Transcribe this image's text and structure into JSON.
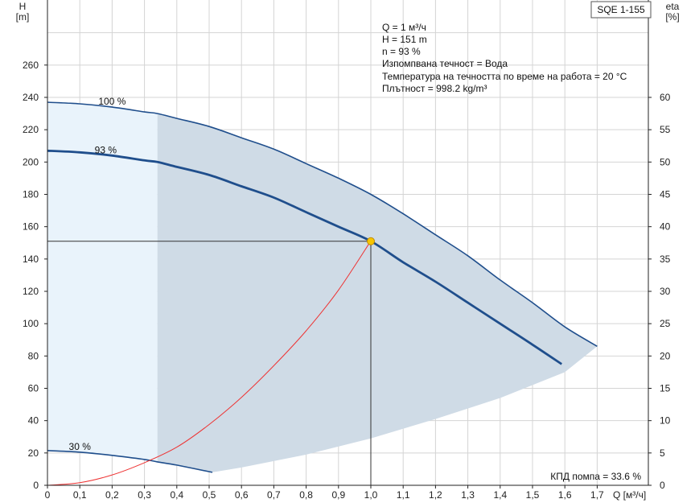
{
  "pump_name": "SQE 1-155",
  "info_lines": [
    "Q = 1 м³/ч",
    "H = 151 m",
    "n = 93 %",
    "Изпомпвана течност = Вода",
    "Температура на течността по време на работа = 20 °C",
    "Плътност = 998.2 kg/m³"
  ],
  "efficiency_note": "КПД помпа = 33.6 %",
  "chart_data": {
    "type": "line",
    "x_axis": {
      "label": "Q [м³/ч]",
      "range": [
        0,
        1.75
      ],
      "ticks": [
        "0",
        "0,1",
        "0,2",
        "0,3",
        "0,4",
        "0,5",
        "0,6",
        "0,7",
        "0,8",
        "0,9",
        "1,0",
        "1,1",
        "1,2",
        "1,3",
        "1,4",
        "1,5",
        "1,6",
        "1,7"
      ]
    },
    "y_left": {
      "label_top": "H",
      "label_unit": "[m]",
      "range": [
        0,
        280
      ],
      "ticks": [
        "0",
        "20",
        "40",
        "60",
        "80",
        "100",
        "120",
        "140",
        "160",
        "180",
        "200",
        "220",
        "240",
        "260"
      ]
    },
    "y_right": {
      "label_top": "eta",
      "label_unit": "[%]",
      "range": [
        0,
        70
      ],
      "ticks": [
        "0",
        "5",
        "10",
        "15",
        "20",
        "25",
        "30",
        "35",
        "40",
        "45",
        "50",
        "55",
        "60"
      ]
    },
    "grid": true,
    "series": [
      {
        "name": "100 %",
        "color": "#1f4e8c",
        "x": [
          0,
          0.1,
          0.2,
          0.3,
          0.34,
          0.4,
          0.5,
          0.6,
          0.7,
          0.8,
          0.9,
          1.0,
          1.1,
          1.2,
          1.3,
          1.4,
          1.5,
          1.6,
          1.7
        ],
        "y": [
          237,
          236,
          234,
          231,
          230,
          227,
          222,
          215,
          208,
          199,
          190,
          180,
          168,
          155,
          142,
          127,
          113,
          98,
          86
        ]
      },
      {
        "name": "93 %",
        "color": "#1f4e8c",
        "x": [
          0,
          0.1,
          0.2,
          0.3,
          0.34,
          0.4,
          0.5,
          0.6,
          0.7,
          0.8,
          0.9,
          1.0,
          1.1,
          1.2,
          1.3,
          1.4,
          1.5,
          1.59
        ],
        "y": [
          207,
          206,
          204,
          201,
          200,
          197,
          192,
          185,
          178,
          169,
          160,
          151,
          138,
          126,
          113,
          100,
          87,
          75
        ]
      },
      {
        "name": "30 %",
        "color": "#1f4e8c",
        "x": [
          0,
          0.1,
          0.2,
          0.3,
          0.34,
          0.4,
          0.51
        ],
        "y": [
          21.5,
          20.5,
          18.5,
          16,
          14.5,
          12.5,
          8
        ]
      },
      {
        "name": "eta",
        "color": "#ee3333",
        "x": [
          0,
          0.1,
          0.2,
          0.3,
          0.4,
          0.5,
          0.6,
          0.7,
          0.8,
          0.9,
          1.0
        ],
        "y": [
          0,
          0.4,
          1.6,
          3.5,
          5.9,
          9.4,
          13.6,
          18.5,
          23.9,
          30.2,
          37.8
        ]
      }
    ],
    "duty_point": {
      "x": 1.0,
      "y": 151,
      "color": "#f7c600"
    },
    "operating_area": {
      "fill": "#cfdbe6",
      "lower_boundary": {
        "x": [
          0.51,
          0.6,
          0.8,
          1.0,
          1.2,
          1.4,
          1.6,
          1.7
        ],
        "y": [
          8,
          11,
          19,
          29,
          41,
          54,
          70,
          86
        ]
      },
      "shaded_from_x": 0.34
    },
    "low_flow_area": {
      "fill": "#e9f3fb",
      "x_range": [
        0,
        0.34
      ]
    }
  }
}
